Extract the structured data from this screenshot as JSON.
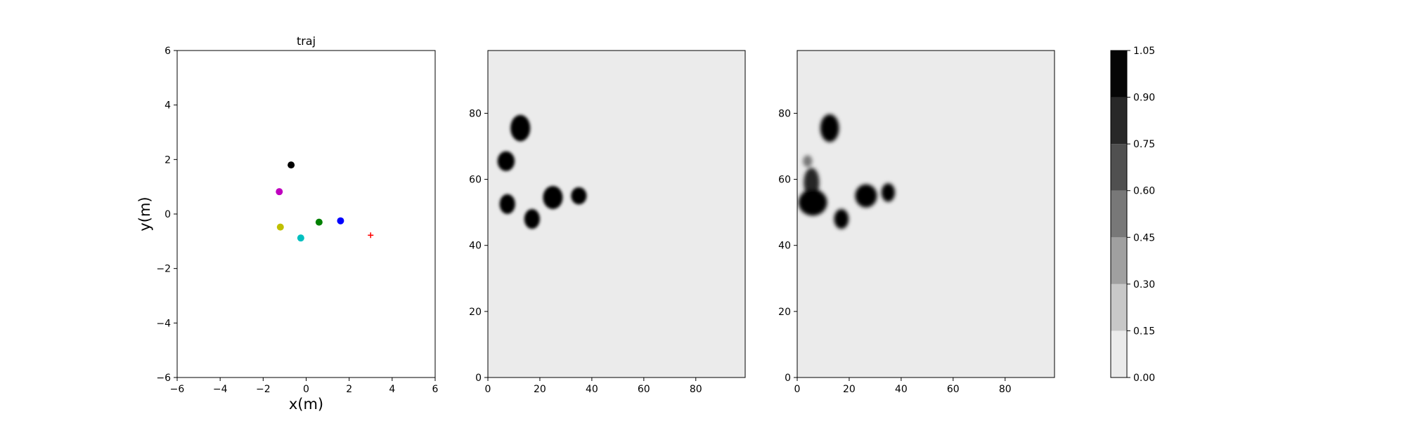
{
  "chart_data": [
    {
      "type": "scatter",
      "title": "traj",
      "xlabel": "x(m)",
      "ylabel": "y(m)",
      "xlim": [
        -6,
        6
      ],
      "ylim": [
        -6,
        6
      ],
      "xticks": [
        "−6",
        "−4",
        "−2",
        "0",
        "2",
        "4",
        "6"
      ],
      "xtick_values": [
        -6,
        -4,
        -2,
        0,
        2,
        4,
        6
      ],
      "yticks": [
        "−6",
        "−4",
        "−2",
        "0",
        "2",
        "4",
        "6"
      ],
      "ytick_values": [
        -6,
        -4,
        -2,
        0,
        2,
        4,
        6
      ],
      "grid": false,
      "points": [
        {
          "x": -0.7,
          "y": 1.8,
          "color": "#000000",
          "marker": "circle"
        },
        {
          "x": -1.25,
          "y": 0.82,
          "color": "#bf00bf",
          "marker": "circle"
        },
        {
          "x": 0.6,
          "y": -0.3,
          "color": "#008000",
          "marker": "circle"
        },
        {
          "x": 1.6,
          "y": -0.25,
          "color": "#0000ff",
          "marker": "circle"
        },
        {
          "x": -1.2,
          "y": -0.48,
          "color": "#bfbf00",
          "marker": "circle"
        },
        {
          "x": -0.25,
          "y": -0.88,
          "color": "#00bfbf",
          "marker": "circle"
        },
        {
          "x": 3.0,
          "y": -0.78,
          "color": "#ff0000",
          "marker": "plus"
        }
      ]
    },
    {
      "type": "heatmap",
      "title": "",
      "xlim": [
        0,
        99
      ],
      "ylim": [
        0,
        99
      ],
      "xticks": [
        "0",
        "20",
        "40",
        "60",
        "80"
      ],
      "xtick_values": [
        0,
        20,
        40,
        60,
        80
      ],
      "yticks": [
        "0",
        "20",
        "40",
        "60",
        "80"
      ],
      "ytick_values": [
        0,
        20,
        40,
        60,
        80
      ],
      "background_value": 0.0,
      "blobs": [
        {
          "cx": 12.5,
          "cy": 75.5,
          "rx": 3.8,
          "ry": 4.0,
          "value": 1.0
        },
        {
          "cx": 7.0,
          "cy": 65.5,
          "rx": 3.3,
          "ry": 3.0,
          "value": 1.0
        },
        {
          "cx": 7.5,
          "cy": 52.5,
          "rx": 3.0,
          "ry": 3.0,
          "value": 1.0
        },
        {
          "cx": 17.0,
          "cy": 48.0,
          "rx": 3.0,
          "ry": 3.0,
          "value": 1.0
        },
        {
          "cx": 25.0,
          "cy": 54.5,
          "rx": 3.8,
          "ry": 3.5,
          "value": 1.0
        },
        {
          "cx": 35.0,
          "cy": 55.0,
          "rx": 3.0,
          "ry": 2.6,
          "value": 1.0
        }
      ]
    },
    {
      "type": "heatmap",
      "title": "",
      "xlim": [
        0,
        99
      ],
      "ylim": [
        0,
        99
      ],
      "xticks": [
        "0",
        "20",
        "40",
        "60",
        "80"
      ],
      "xtick_values": [
        0,
        20,
        40,
        60,
        80
      ],
      "yticks": [
        "0",
        "20",
        "40",
        "60",
        "80"
      ],
      "ytick_values": [
        0,
        20,
        40,
        60,
        80
      ],
      "background_value": 0.0,
      "blobs": [
        {
          "cx": 12.5,
          "cy": 75.5,
          "rx": 3.6,
          "ry": 4.2,
          "value": 1.0
        },
        {
          "cx": 4.0,
          "cy": 65.5,
          "rx": 1.8,
          "ry": 1.8,
          "value": 0.45
        },
        {
          "cx": 5.5,
          "cy": 59.0,
          "rx": 3.0,
          "ry": 4.5,
          "value": 0.75
        },
        {
          "cx": 6.0,
          "cy": 53.0,
          "rx": 5.5,
          "ry": 4.0,
          "value": 1.0
        },
        {
          "cx": 17.0,
          "cy": 48.0,
          "rx": 2.8,
          "ry": 3.0,
          "value": 1.0
        },
        {
          "cx": 26.5,
          "cy": 55.0,
          "rx": 4.2,
          "ry": 3.5,
          "value": 1.0
        },
        {
          "cx": 35.0,
          "cy": 56.0,
          "rx": 2.6,
          "ry": 2.8,
          "value": 1.0
        }
      ]
    },
    {
      "type": "colorbar",
      "levels": [
        0.0,
        0.15,
        0.3,
        0.45,
        0.6,
        0.75,
        0.9,
        1.05
      ],
      "tick_labels": [
        "0.00",
        "0.15",
        "0.30",
        "0.45",
        "0.60",
        "0.75",
        "0.90",
        "1.05"
      ],
      "colors": [
        "#ebebeb",
        "#c8c8c8",
        "#a0a0a0",
        "#787878",
        "#505050",
        "#282828",
        "#050505"
      ]
    }
  ]
}
